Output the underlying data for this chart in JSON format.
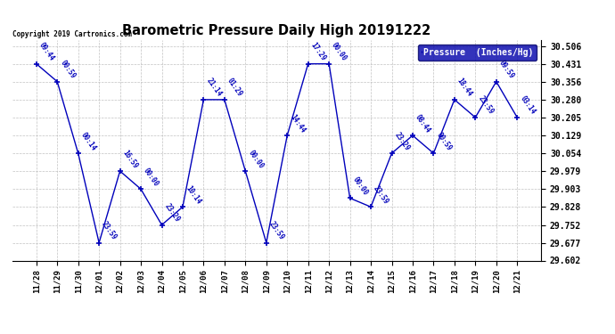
{
  "title": "Barometric Pressure Daily High 20191222",
  "ylabel": "Pressure  (Inches/Hg)",
  "copyright": "Copyright 2019 Cartronics.com",
  "line_color": "#0000BB",
  "background_color": "#ffffff",
  "grid_color": "#bbbbbb",
  "legend_bg": "#0000AA",
  "ylim_low": 29.602,
  "ylim_high": 30.531,
  "yticks": [
    29.602,
    29.677,
    29.752,
    29.828,
    29.903,
    29.979,
    30.054,
    30.129,
    30.205,
    30.28,
    30.356,
    30.431,
    30.506
  ],
  "dates": [
    "11/28",
    "11/29",
    "11/30",
    "12/01",
    "12/02",
    "12/03",
    "12/04",
    "12/05",
    "12/06",
    "12/07",
    "12/08",
    "12/09",
    "12/10",
    "12/11",
    "12/12",
    "12/13",
    "12/14",
    "12/15",
    "12/16",
    "12/17",
    "12/18",
    "12/19",
    "12/20",
    "12/21"
  ],
  "values": [
    30.431,
    30.356,
    30.054,
    29.677,
    29.979,
    29.903,
    29.752,
    29.828,
    30.28,
    30.28,
    29.979,
    29.677,
    30.129,
    30.431,
    30.431,
    29.865,
    29.828,
    30.054,
    30.129,
    30.054,
    30.28,
    30.205,
    30.356,
    30.205
  ],
  "time_labels": [
    "09:44",
    "00:59",
    "00:14",
    "23:59",
    "16:59",
    "00:00",
    "23:29",
    "10:14",
    "21:14",
    "01:29",
    "00:00",
    "23:59",
    "14:44",
    "17:29",
    "00:00",
    "00:00",
    "23:59",
    "23:29",
    "08:44",
    "00:59",
    "18:44",
    "23:59",
    "09:59",
    "03:14"
  ],
  "figwidth": 6.9,
  "figheight": 3.75,
  "dpi": 100
}
